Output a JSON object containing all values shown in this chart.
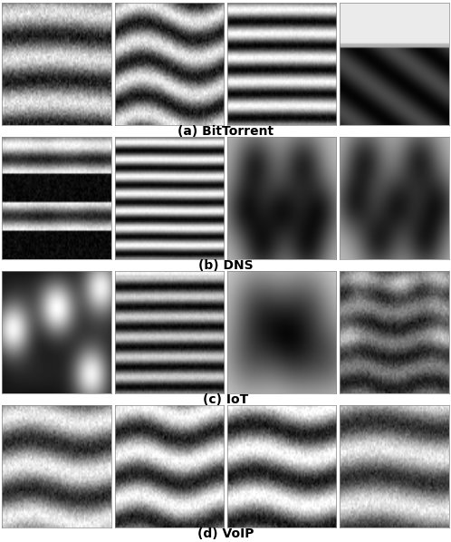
{
  "labels": [
    "(a) BitTorrent",
    "(b) DNS",
    "(c) IoT",
    "(d) VoIP"
  ],
  "label_fontsize": 10,
  "background_color": "#ffffff",
  "fig_width": 4.98,
  "fig_height": 5.98,
  "dpi": 100
}
